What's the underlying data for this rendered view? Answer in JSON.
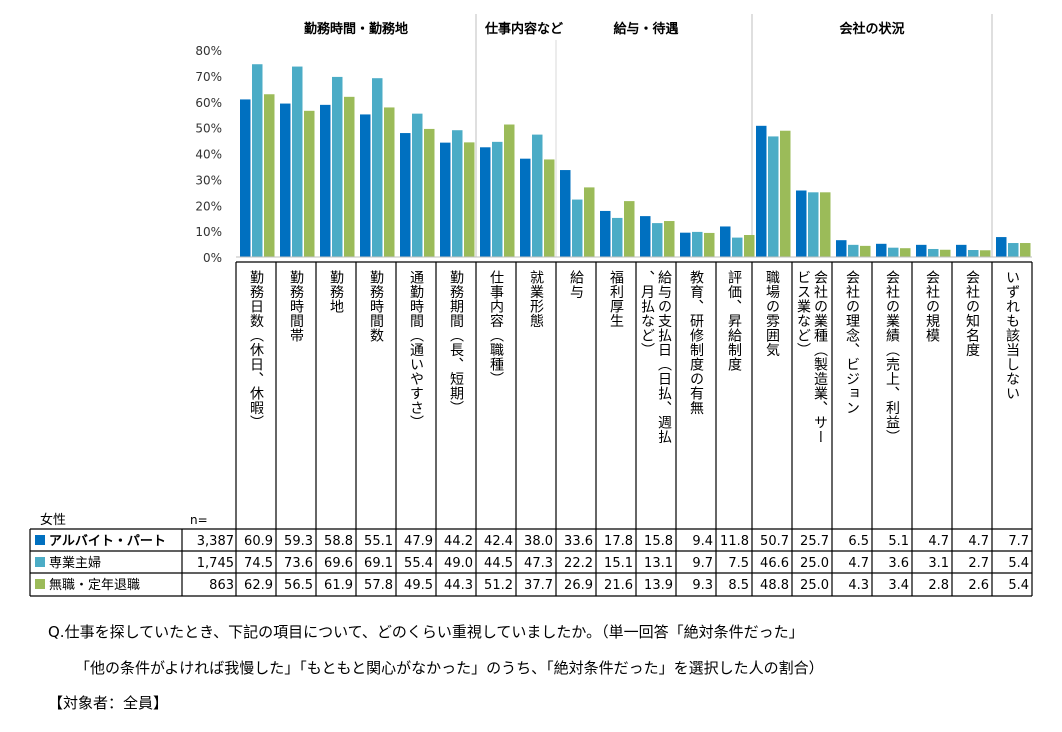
{
  "chart_data": {
    "type": "bar",
    "group_labels": [
      "勤務時間・勤務地",
      "仕事内容など",
      "給与・待遇",
      "会社の状況"
    ],
    "categories": [
      "勤務日数（休日、休暇）",
      "勤務時間帯",
      "勤務地",
      "勤務時間数",
      "通勤時間（通いやすさ）",
      "勤務期間（長、短期）",
      "仕事内容（職種）",
      "就業形態",
      "給与",
      "福利厚生",
      "給与の支払日（日払、週払、月払など）",
      "教育、研修制度の有無",
      "評価、昇給制度",
      "職場の雰囲気",
      "会社の業種（製造業、サービス業など）",
      "会社の理念、ビジョン",
      "会社の業績（売上、利益）",
      "会社の規模",
      "会社の知名度",
      "いずれも該当しない"
    ],
    "series": [
      {
        "name": "アルバイト・パート",
        "n": "3,387",
        "color": "#0070c0",
        "values": [
          60.9,
          59.3,
          58.8,
          55.1,
          47.9,
          44.2,
          42.4,
          38.0,
          33.6,
          17.8,
          15.8,
          9.4,
          11.8,
          50.7,
          25.7,
          6.5,
          5.1,
          4.7,
          4.7,
          7.7
        ]
      },
      {
        "name": "専業主婦",
        "n": "1,745",
        "color": "#4bacc6",
        "values": [
          74.5,
          73.6,
          69.6,
          69.1,
          55.4,
          49.0,
          44.5,
          47.3,
          22.2,
          15.1,
          13.1,
          9.7,
          7.5,
          46.6,
          25.0,
          4.7,
          3.6,
          3.1,
          2.7,
          5.4
        ]
      },
      {
        "name": "無職・定年退職",
        "n": "863",
        "color": "#9bbb59",
        "values": [
          62.9,
          56.5,
          61.9,
          57.8,
          49.5,
          44.3,
          51.2,
          37.7,
          26.9,
          21.6,
          13.9,
          9.3,
          8.5,
          48.8,
          25.0,
          4.3,
          3.4,
          2.8,
          2.6,
          5.4
        ]
      }
    ],
    "y_ticks": [
      "0%",
      "10%",
      "20%",
      "30%",
      "40%",
      "50%",
      "60%",
      "70%",
      "80%"
    ],
    "ylim": [
      0,
      80
    ],
    "table_header_label": "女性",
    "table_n_label": "n=",
    "grid": false
  },
  "question": {
    "line1": "Q.仕事を探していたとき、下記の項目について、どのくらい重視していましたか。（単一回答「絶対条件だった」",
    "line2": "「他の条件がよければ我慢した」「もともと関心がなかった」のうち、「絶対条件だった」を選択した人の割合）",
    "line3": "【対象者：全員】"
  }
}
